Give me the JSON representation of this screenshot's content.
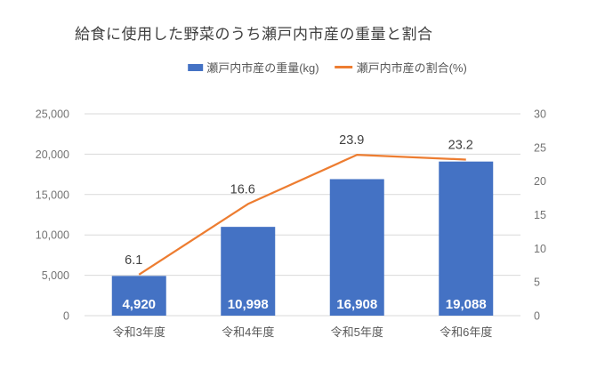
{
  "chart_data": {
    "type": "combo-bar-line",
    "title": "給食に使用した野菜のうち瀬戸内市産の重量と割合",
    "categories": [
      "令和3年度",
      "令和4年度",
      "令和5年度",
      "令和6年度"
    ],
    "series": [
      {
        "name": "瀬戸内市産の重量(kg)",
        "type": "bar",
        "axis": "left",
        "color": "#4472C4",
        "values": [
          4920,
          10998,
          16908,
          19088
        ],
        "labels": [
          "4,920",
          "10,998",
          "16,908",
          "19,088"
        ]
      },
      {
        "name": "瀬戸内市産の割合(%)",
        "type": "line",
        "axis": "right",
        "color": "#ED7D31",
        "values": [
          6.1,
          16.6,
          23.9,
          23.2
        ],
        "labels": [
          "6.1",
          "16.6",
          "23.9",
          "23.2"
        ]
      }
    ],
    "left_axis": {
      "min": 0,
      "max": 25000,
      "step": 5000,
      "tick_labels": [
        "0",
        "5,000",
        "10,000",
        "15,000",
        "20,000",
        "25,000"
      ]
    },
    "right_axis": {
      "min": 0,
      "max": 30,
      "step": 5,
      "tick_labels": [
        "0",
        "5",
        "10",
        "15",
        "20",
        "25",
        "30"
      ]
    },
    "grid": true,
    "legend_position": "top-center"
  },
  "colors": {
    "background": "#FFFFFF",
    "bar": "#4472C4",
    "line": "#ED7D31",
    "grid": "#D9D9D9",
    "axis_text": "#737373",
    "category_text": "#595959",
    "title_text": "#3F3F3F",
    "data_label_text": "#404040",
    "bar_label_text": "#FFFFFF",
    "legend_text": "#595959"
  }
}
